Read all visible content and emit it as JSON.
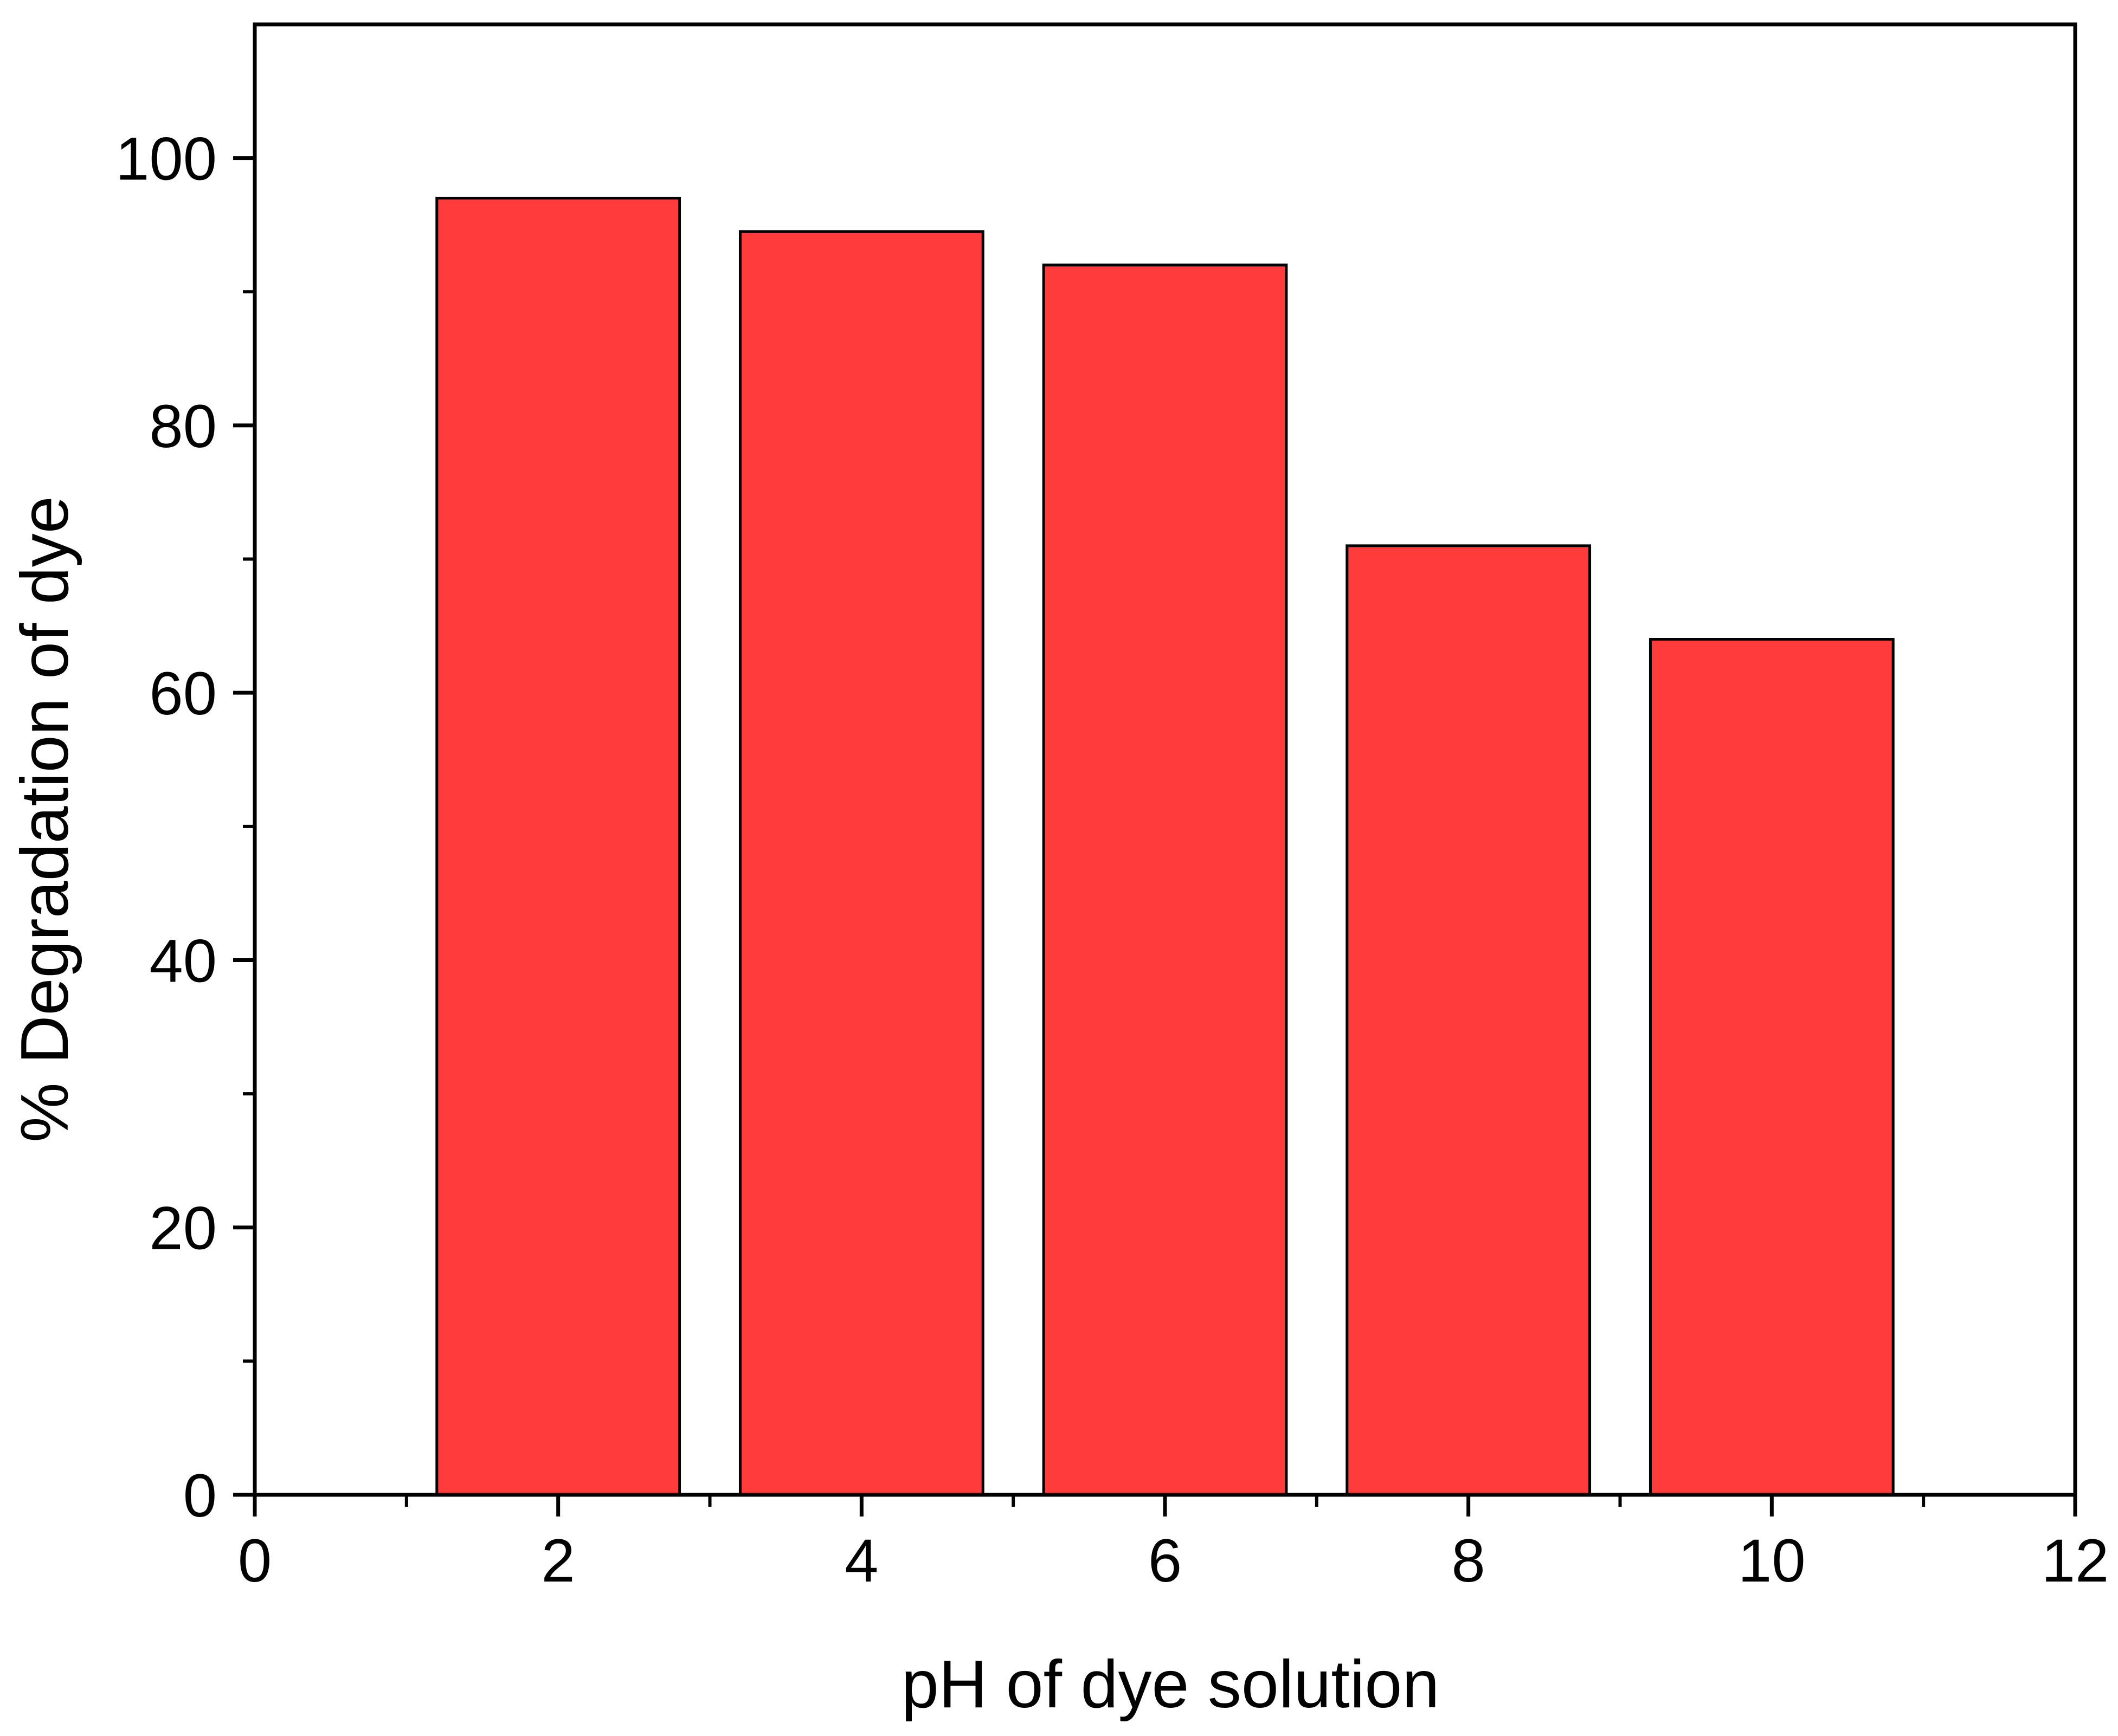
{
  "chart_data": {
    "type": "bar",
    "title": "",
    "xlabel": "pH of dye solution",
    "ylabel": "% Degradation of dye",
    "x": [
      2,
      4,
      6,
      8,
      10
    ],
    "values": [
      97,
      94.5,
      92,
      71,
      64
    ],
    "bar_width": 1.6,
    "xlim": [
      0,
      12
    ],
    "ylim": [
      0,
      110
    ],
    "x_major_ticks": [
      0,
      2,
      4,
      6,
      8,
      10,
      12
    ],
    "x_minor_ticks": [
      1,
      3,
      5,
      7,
      9,
      11
    ],
    "y_major_ticks": [
      0,
      20,
      40,
      60,
      80,
      100
    ],
    "y_minor_ticks": [
      10,
      30,
      50,
      70,
      90
    ],
    "grid": false,
    "legend": "none",
    "colors": {
      "bar_fill": "#ff3b3b",
      "bar_stroke": "#000000",
      "axis": "#000000",
      "background": "#ffffff"
    }
  }
}
